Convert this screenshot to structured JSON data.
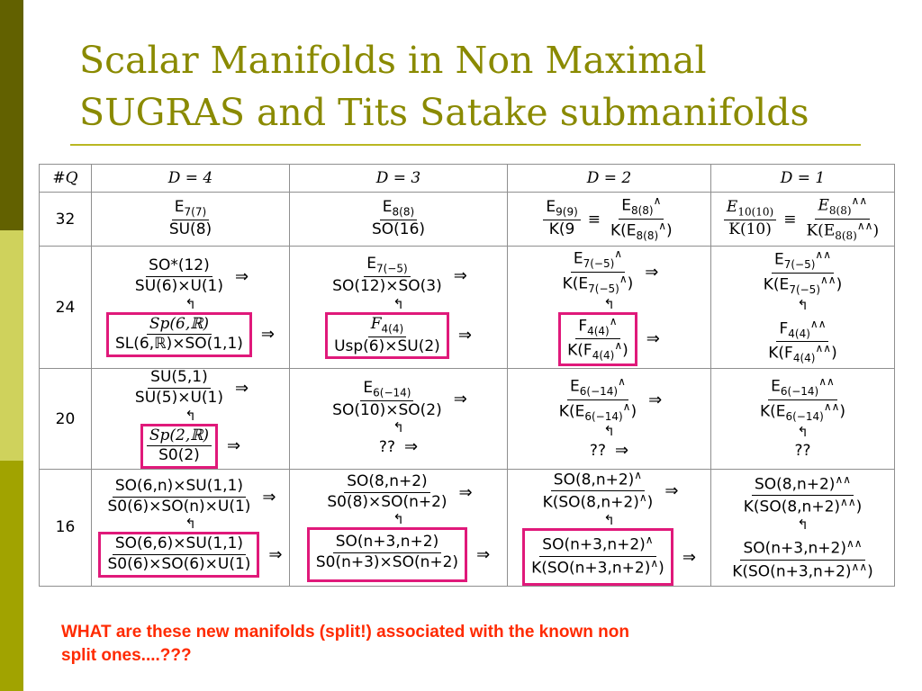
{
  "slide": {
    "title_line1": "Scalar Manifolds in Non Maximal",
    "title_line2": "SUGRAS and Tits Satake submanifolds",
    "accent_colors": {
      "title": "#8a8a00",
      "highlight_box": "#e0197a",
      "note": "#ff2a00"
    }
  },
  "table": {
    "headers": [
      "#Q",
      "D = 4",
      "D = 3",
      "D = 2",
      "D = 1"
    ],
    "rows": [
      {
        "q": "32",
        "d4": {
          "num": "E",
          "num_sub": "7(7)",
          "den": "SU(8)"
        },
        "d3": {
          "num": "E",
          "num_sub": "8(8)",
          "den": "SO(16)"
        },
        "d2": {
          "left_num": "E",
          "left_num_sub": "9(9)",
          "left_den": "K(9",
          "equiv": "≡",
          "right_num": "E",
          "right_num_sub": "8(8)",
          "right_num_sup": "∧",
          "right_den": "K(E",
          "right_den_sub": "8(8)",
          "right_den_sup": "∧",
          "right_den_close": ")"
        },
        "d1": {
          "left_num": "E",
          "left_num_sub": "10(10)",
          "left_den": "K(10)",
          "equiv": "≡",
          "right_num": "E",
          "right_num_sub": "8(8)",
          "right_num_sup": "∧∧",
          "right_den": "K(E",
          "right_den_sub": "8(8)",
          "right_den_sup": "∧∧",
          "right_den_close": ")"
        }
      },
      {
        "q": "24",
        "d4": {
          "top_num": "SO*(12)",
          "top_den": "SU(6)×U(1)",
          "bot_num": "Sp(6,ℝ)",
          "bot_den": "SL(6,ℝ)×SO(1,1)"
        },
        "d3": {
          "top_num": "E",
          "top_num_sub": "7(−5)",
          "top_den": "SO(12)×SO(3)",
          "bot_num": "F",
          "bot_num_sub": "4(4)",
          "bot_den": "Usp(6)×SU(2)"
        },
        "d2": {
          "top_num": "E",
          "top_num_sub": "7(−5)",
          "top_num_sup": "∧",
          "top_den": "K(E",
          "top_den_sub": "7(−5)",
          "top_den_sup": "∧",
          "top_den_close": ")",
          "bot_num": "F",
          "bot_num_sub": "4(4)",
          "bot_num_sup": "∧",
          "bot_den": "K(F",
          "bot_den_sub": "4(4)",
          "bot_den_sup": "∧",
          "bot_den_close": ")"
        },
        "d1": {
          "top_num": "E",
          "top_num_sub": "7(−5)",
          "top_num_sup": "∧∧",
          "top_den": "K(E",
          "top_den_sub": "7(−5)",
          "top_den_sup": "∧∧",
          "top_den_close": ")",
          "bot_num": "F",
          "bot_num_sub": "4(4)",
          "bot_num_sup": "∧∧",
          "bot_den": "K(F",
          "bot_den_sub": "4(4)",
          "bot_den_sup": "∧∧",
          "bot_den_close": ")"
        }
      },
      {
        "q": "20",
        "d4": {
          "top_num": "SU(5,1)",
          "top_den": "SU(5)×U(1)",
          "bot_num": "Sp(2,ℝ)",
          "bot_den": "S0(2)"
        },
        "d3": {
          "top_num": "E",
          "top_num_sub": "6(−14)",
          "top_den": "SO(10)×SO(2)",
          "bot": "??"
        },
        "d2": {
          "top_num": "E",
          "top_num_sub": "6(−14)",
          "top_num_sup": "∧",
          "top_den": "K(E",
          "top_den_sub": "6(−14)",
          "top_den_sup": "∧",
          "top_den_close": ")",
          "bot": "??"
        },
        "d1": {
          "top_num": "E",
          "top_num_sub": "6(−14)",
          "top_num_sup": "∧∧",
          "top_den": "K(E",
          "top_den_sub": "6(−14)",
          "top_den_sup": "∧∧",
          "top_den_close": ")",
          "bot": "??"
        }
      },
      {
        "q": "16",
        "d4": {
          "top_num": "SO(6,n)×SU(1,1)",
          "top_den": "S0(6)×SO(n)×U(1)",
          "bot_num": "SO(6,6)×SU(1,1)",
          "bot_den": "S0(6)×SO(6)×U(1)"
        },
        "d3": {
          "top_num": "SO(8,n+2)",
          "top_den": "S0(8)×SO(n+2)",
          "bot_num": "SO(n+3,n+2)",
          "bot_den": "S0(n+3)×SO(n+2)"
        },
        "d2": {
          "top_num": "SO(8,n+2)",
          "top_num_sup": "∧",
          "top_den": "K(SO(8,n+2)",
          "top_den_sup": "∧",
          "top_den_close": ")",
          "bot_num": "SO(n+3,n+2)",
          "bot_num_sup": "∧",
          "bot_den": "K(SO(n+3,n+2)",
          "bot_den_sup": "∧",
          "bot_den_close": ")"
        },
        "d1": {
          "top_num": "SO(8,n+2)",
          "top_num_sup": "∧∧",
          "top_den": "K(SO(8,n+2)",
          "top_den_sup": "∧∧",
          "top_den_close": ")",
          "bot_num": "SO(n+3,n+2)",
          "bot_num_sup": "∧∧",
          "bot_den": "K(SO(n+3,n+2)",
          "bot_den_sup": "∧∧",
          "bot_den_close": ")"
        }
      }
    ],
    "arrow": "⇒",
    "hook": "↰"
  },
  "footer": {
    "note_line1": "WHAT are these new manifolds (split!) associated with the known non",
    "note_line2": "split ones....???"
  }
}
